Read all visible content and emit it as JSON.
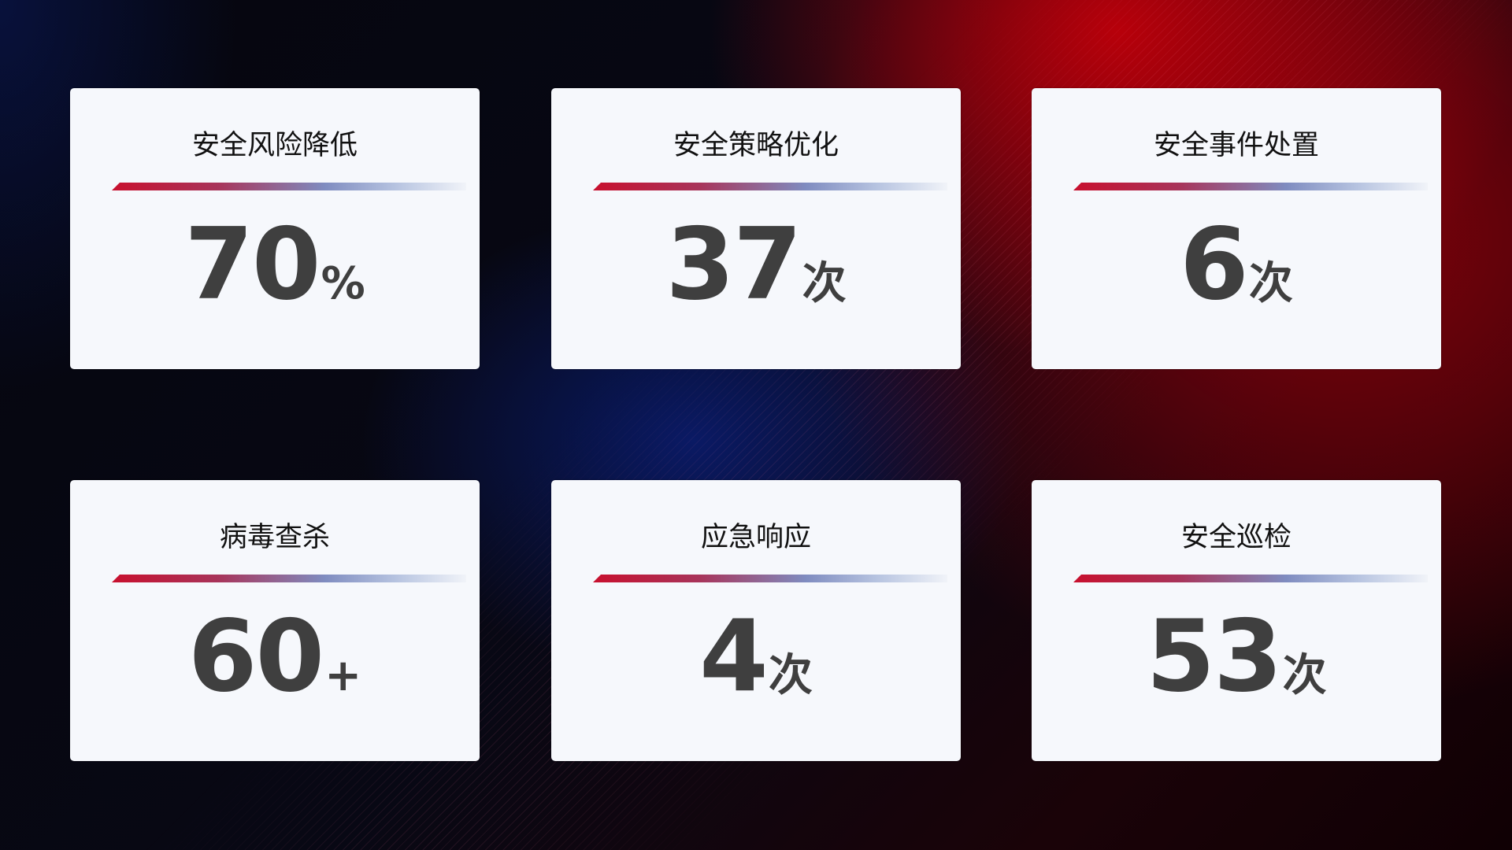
{
  "cards": [
    {
      "title": "安全风险降低",
      "value": "70",
      "unit": "%"
    },
    {
      "title": "安全策略优化",
      "value": "37",
      "unit": "次"
    },
    {
      "title": "安全事件处置",
      "value": "6",
      "unit": "次"
    },
    {
      "title": "病毒查杀",
      "value": "60",
      "unit": "+"
    },
    {
      "title": "应急响应",
      "value": "4",
      "unit": "次"
    },
    {
      "title": "安全巡检",
      "value": "53",
      "unit": "次"
    }
  ],
  "colors": {
    "accent_red": "#c8102e",
    "accent_blue": "#7f8cc0",
    "card_bg": "#f6f8fc",
    "value_text": "#3f3f3f"
  }
}
